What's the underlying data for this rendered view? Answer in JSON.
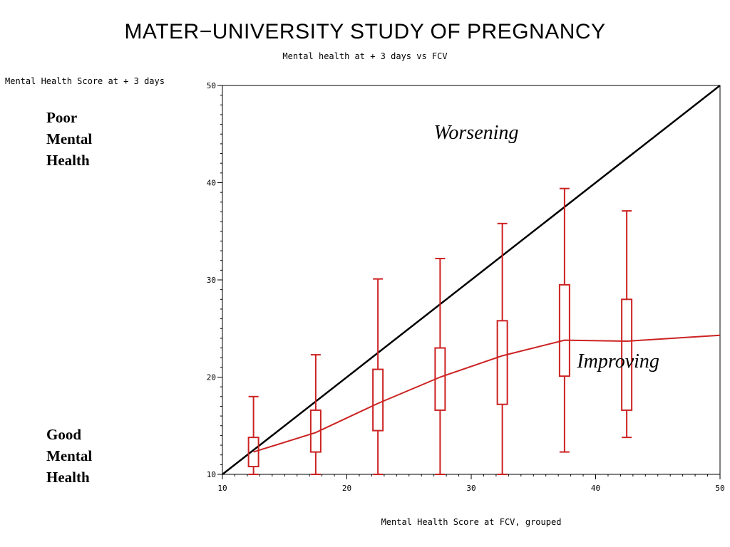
{
  "chart_data": {
    "type": "boxplot",
    "title": "MATER−UNIVERSITY STUDY OF PREGNANCY",
    "subtitle": "Mental health at + 3 days vs FCV",
    "xlabel": "Mental Health Score at FCV, grouped",
    "ylabel": "Mental Health Score at + 3 days",
    "xlim": [
      10,
      50
    ],
    "ylim": [
      10,
      50
    ],
    "x_ticks": [
      10,
      20,
      30,
      40,
      50
    ],
    "y_ticks": [
      10,
      20,
      30,
      40,
      50
    ],
    "grid": false,
    "colors": {
      "boxes": "#cc2222",
      "reference_line": "#000000",
      "axes": "#000000"
    },
    "boxes": [
      {
        "x": 12.5,
        "min": 10.0,
        "q1": 10.8,
        "median": 12.3,
        "q3": 13.8,
        "max": 18.0
      },
      {
        "x": 17.5,
        "min": 10.0,
        "q1": 12.3,
        "median": 14.3,
        "q3": 16.6,
        "max": 22.3
      },
      {
        "x": 22.5,
        "min": 10.0,
        "q1": 14.5,
        "median": 17.3,
        "q3": 20.8,
        "max": 30.1
      },
      {
        "x": 27.5,
        "min": 10.0,
        "q1": 16.6,
        "median": 20.0,
        "q3": 23.0,
        "max": 32.2
      },
      {
        "x": 32.5,
        "min": 10.0,
        "q1": 17.2,
        "median": 22.2,
        "q3": 25.8,
        "max": 35.8
      },
      {
        "x": 37.5,
        "min": 12.3,
        "q1": 20.1,
        "median": 23.8,
        "q3": 29.5,
        "max": 39.4
      },
      {
        "x": 42.5,
        "min": 13.8,
        "q1": 16.6,
        "median": 23.7,
        "q3": 28.0,
        "max": 37.1
      }
    ],
    "median_line": [
      [
        12.5,
        12.3
      ],
      [
        17.5,
        14.3
      ],
      [
        22.5,
        17.3
      ],
      [
        27.5,
        20.0
      ],
      [
        32.5,
        22.2
      ],
      [
        37.5,
        23.8
      ],
      [
        42.5,
        23.7
      ],
      [
        50.0,
        24.3
      ]
    ],
    "reference_line": [
      [
        10,
        10
      ],
      [
        50,
        50
      ]
    ],
    "annotations": [
      {
        "text": "Worsening",
        "x": 27.0,
        "y": 44.5
      },
      {
        "text": "Improving",
        "x": 38.5,
        "y": 21.0
      }
    ]
  },
  "side_notes": {
    "top": [
      "Poor",
      "Mental",
      "Health"
    ],
    "bottom": [
      "Good",
      "Mental",
      "Health"
    ]
  }
}
